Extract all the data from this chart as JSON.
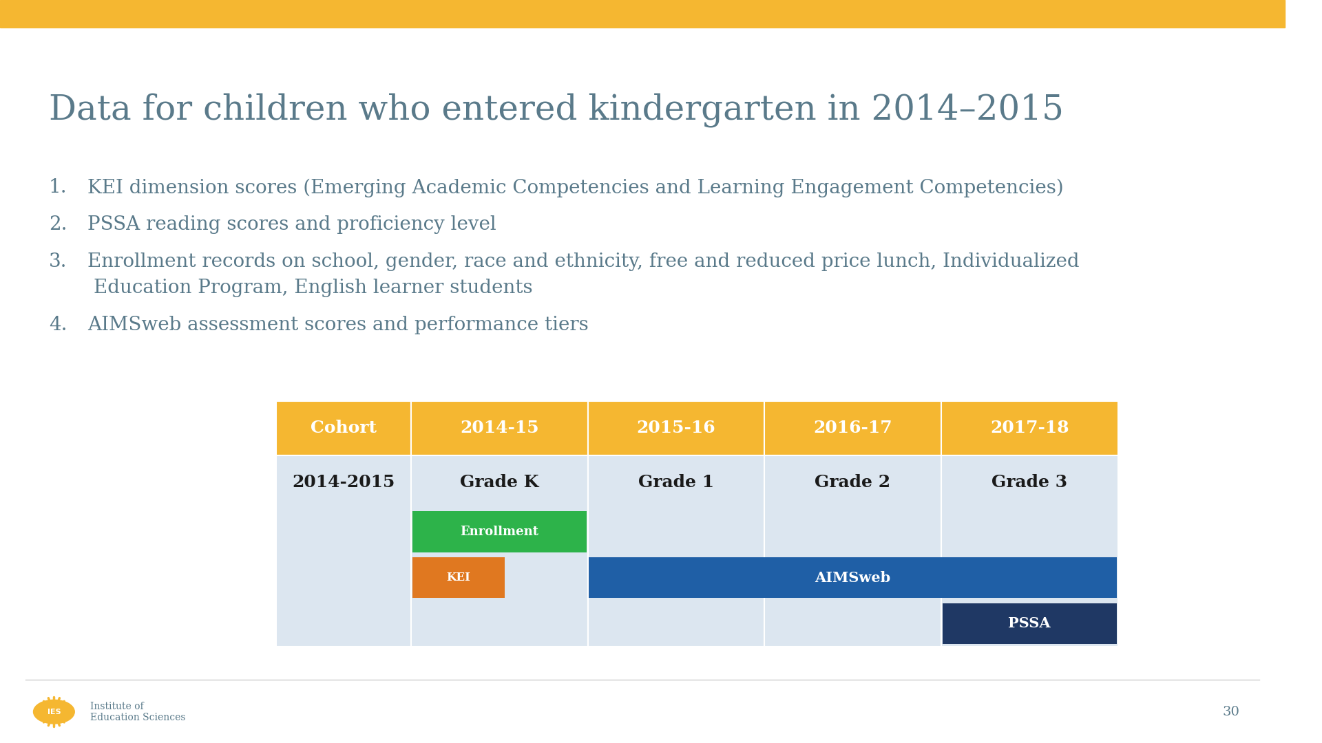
{
  "title": "Data for children who entered kindergarten in 2014–2015",
  "title_color": "#5a7a8a",
  "title_fontsize": 36,
  "bg_color": "#ffffff",
  "top_bar_color": "#f5b731",
  "top_bar_height": 0.037,
  "bullet_items": [
    "KEI dimension scores (Emerging Academic Competencies and Learning Engagement Competencies)",
    "PSSA reading scores and proficiency level",
    "Enrollment records on school, gender, race and ethnicity, free and reduced price lunch, Individualized",
    "Education Program, English learner students",
    "AIMSweb assessment scores and performance tiers"
  ],
  "bullet_numbers": [
    "1.",
    "2.",
    "3.",
    "",
    "4."
  ],
  "bullet_color": "#5a7a8a",
  "bullet_fontsize": 20,
  "table_header_bg": "#f5b731",
  "table_header_text": "#ffffff",
  "table_cell_bg": "#dce6f0",
  "table_text_color": "#1a1a1a",
  "table_header_fontsize": 18,
  "table_cell_fontsize": 18,
  "table_cols": [
    "Cohort",
    "2014-15",
    "2015-16",
    "2016-17",
    "2017-18"
  ],
  "table_row": [
    "2014-2015",
    "Grade K",
    "Grade 1",
    "Grade 2",
    "Grade 3"
  ],
  "enrollment_color": "#2db34a",
  "kei_color": "#e07820",
  "aimsweb_color": "#1f5fa6",
  "pssa_color": "#1f3864",
  "footer_line_color": "#cccccc",
  "footer_org_text": "Institute of\nEducation Sciences",
  "footer_page_num": "30",
  "footer_text_color": "#5a7a8a"
}
